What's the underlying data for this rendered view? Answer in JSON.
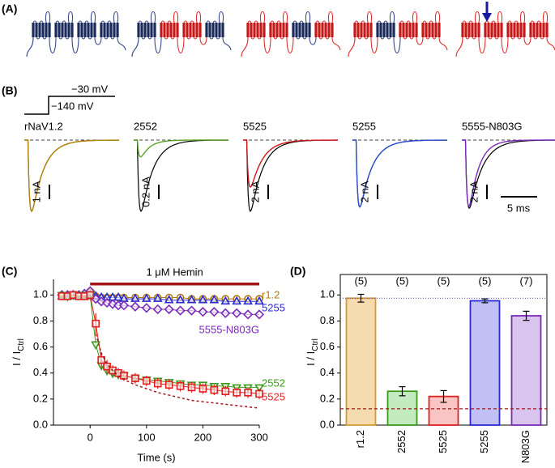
{
  "panel_labels": [
    "(A)",
    "(B)",
    "(C)",
    "(D)"
  ],
  "protocol": {
    "labels": [
      "−30 mV",
      "−140 mV"
    ]
  },
  "traces": [
    {
      "name": "rNaV1.2",
      "scale": "1 nA"
    },
    {
      "name": "2552",
      "scale": "0.2 nA"
    },
    {
      "name": "5525",
      "scale": "2 nA"
    },
    {
      "name": "5255",
      "scale": "2 nA"
    },
    {
      "name": "5555-N803G",
      "scale": "2 nA"
    }
  ],
  "time_scale": "5 ms",
  "chart_data": [
    {
      "type": "line",
      "xlabel": "Time (s)",
      "ylabel": "I / I",
      "ylabel_sub": "Ctrl",
      "x": [
        -50,
        -40,
        -30,
        -20,
        -10,
        0,
        10,
        20,
        30,
        40,
        50,
        60,
        80,
        100,
        120,
        140,
        160,
        180,
        200,
        220,
        240,
        260,
        280,
        300
      ],
      "xlim": [
        -65,
        300
      ],
      "xticks": [
        0,
        100,
        200,
        300
      ],
      "ylim": [
        0,
        1.12
      ],
      "yticks": [
        {
          "value": 0,
          "label": "0.0"
        },
        0.2,
        0.4,
        0.6,
        0.8,
        {
          "value": 1,
          "label": "1.0"
        }
      ],
      "annotation": {
        "text": "1 μM Hemin",
        "start": 0,
        "end": 300,
        "color": "#a3161a"
      },
      "series": [
        {
          "name": "r1.2",
          "color": "#b07a10",
          "marker": "circle",
          "values": [
            1,
            1,
            1,
            0.99,
            1,
            1.02,
            0.99,
            0.98,
            0.98,
            0.98,
            0.98,
            0.98,
            0.98,
            0.98,
            0.98,
            0.98,
            0.98,
            0.97,
            0.97,
            0.97,
            0.97,
            0.97,
            0.97,
            0.97
          ]
        },
        {
          "name": "5255",
          "color": "#2a2ad0",
          "marker": "triangle-up",
          "values": [
            0.99,
            0.99,
            1,
            0.99,
            0.99,
            1.0,
            0.99,
            0.98,
            0.98,
            0.98,
            0.98,
            0.97,
            0.97,
            0.97,
            0.97,
            0.96,
            0.96,
            0.96,
            0.96,
            0.96,
            0.95,
            0.95,
            0.95,
            0.95
          ]
        },
        {
          "name": "5555-N803G",
          "color": "#7a2ab8",
          "marker": "diamond",
          "values": [
            1,
            1,
            1,
            1,
            1.01,
            1.03,
            0.97,
            0.95,
            0.94,
            0.93,
            0.92,
            0.92,
            0.91,
            0.9,
            0.89,
            0.89,
            0.88,
            0.88,
            0.87,
            0.87,
            0.86,
            0.86,
            0.85,
            0.85
          ]
        },
        {
          "name": "2552",
          "color": "#3a9a1a",
          "marker": "triangle-down",
          "values": [
            1,
            0.99,
            1,
            1,
            1,
            1,
            0.62,
            0.46,
            0.42,
            0.4,
            0.39,
            0.38,
            0.36,
            0.35,
            0.34,
            0.33,
            0.32,
            0.31,
            0.31,
            0.3,
            0.3,
            0.29,
            0.29,
            0.29
          ]
        },
        {
          "name": "5525",
          "color": "#e02020",
          "marker": "square",
          "values": [
            0.99,
            0.99,
            1,
            0.99,
            0.99,
            1.0,
            0.78,
            0.5,
            0.45,
            0.42,
            0.4,
            0.38,
            0.36,
            0.34,
            0.32,
            0.31,
            0.3,
            0.29,
            0.28,
            0.27,
            0.26,
            0.25,
            0.25,
            0.24
          ],
          "errors": [
            0.01,
            0.01,
            0.01,
            0.01,
            0.01,
            0.01,
            0.08,
            0.06,
            0.05,
            0.04,
            0.04,
            0.04,
            0.04,
            0.04,
            0.04,
            0.04,
            0.04,
            0.04,
            0.04,
            0.04,
            0.04,
            0.04,
            0.04,
            0.04
          ]
        },
        {
          "color": "#a3161a",
          "dashed": true,
          "values": [
            null,
            null,
            null,
            null,
            null,
            null,
            0.7,
            0.55,
            0.47,
            0.42,
            0.38,
            0.35,
            0.31,
            0.28,
            0.25,
            0.23,
            0.21,
            0.19,
            0.18,
            0.17,
            0.16,
            0.15,
            0.14,
            0.13
          ]
        }
      ]
    },
    {
      "type": "bar",
      "ylabel": "I / I",
      "ylabel_sub": "Ctrl",
      "categories": [
        "r1.2",
        "2552",
        "5525",
        "5255",
        "N803G"
      ],
      "values": [
        0.975,
        0.26,
        0.22,
        0.955,
        0.84
      ],
      "errors": [
        0.03,
        0.035,
        0.045,
        0.015,
        0.035
      ],
      "n_labels": [
        "(5)",
        "(5)",
        "(5)",
        "(5)",
        "(7)"
      ],
      "colors": [
        "#d89a30",
        "#3a9a1a",
        "#e02020",
        "#2a2ad0",
        "#7a2ab8"
      ],
      "fills": [
        "#f4dcb0",
        "#c4ebc0",
        "#f9c4c4",
        "#c0c0f4",
        "#d8c4ec"
      ],
      "ylim": [
        0,
        1.12
      ],
      "yticks": [
        {
          "value": 0,
          "label": "0.0"
        },
        0.2,
        0.4,
        0.6,
        0.8,
        {
          "value": 1,
          "label": "1.0"
        }
      ],
      "reference_lines": [
        {
          "value": 0.975,
          "color": "#5a5ab0",
          "style": "dotted"
        },
        {
          "value": 0.125,
          "color": "#a3161a",
          "style": "dashed"
        }
      ]
    }
  ]
}
